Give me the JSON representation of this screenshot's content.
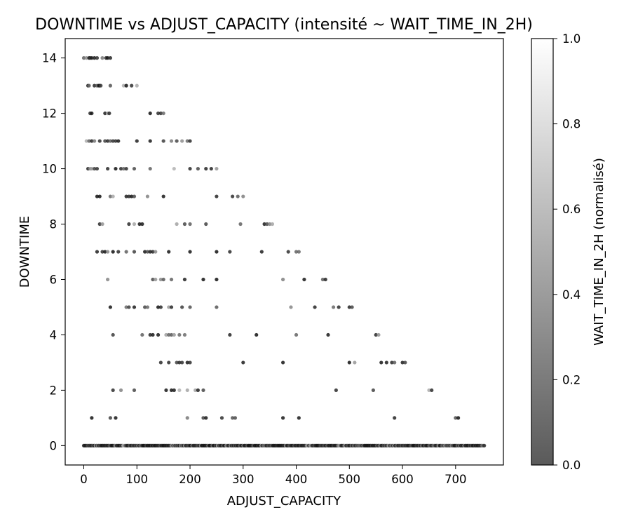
{
  "chart_data": {
    "type": "scatter",
    "title": "DOWNTIME vs ADJUST_CAPACITY (intensité ~ WAIT_TIME_IN_2H)",
    "xlabel": "ADJUST_CAPACITY",
    "ylabel": "DOWNTIME",
    "xlim": [
      -35,
      790
    ],
    "ylim": [
      -0.7,
      14.7
    ],
    "xticks": [
      0,
      100,
      200,
      300,
      400,
      500,
      600,
      700
    ],
    "yticks": [
      0,
      2,
      4,
      6,
      8,
      10,
      12,
      14
    ],
    "grid": false,
    "colorbar": {
      "label": "WAIT_TIME_IN_2H (normalisé)",
      "range": [
        0,
        1
      ],
      "ticks": [
        "0.0",
        "0.2",
        "0.4",
        "0.6",
        "0.8",
        "1.0"
      ],
      "color_low": "#5a5a5a",
      "color_high": "#ffffff"
    },
    "points": [
      {
        "y": 14,
        "x": [
          0,
          5,
          10,
          12,
          15,
          20,
          25,
          35,
          42,
          45,
          50
        ]
      },
      {
        "y": 13,
        "x": [
          8,
          10,
          20,
          25,
          28,
          30,
          32,
          50,
          75,
          80,
          90,
          100
        ]
      },
      {
        "y": 12,
        "x": [
          12,
          15,
          40,
          45,
          48,
          125,
          140,
          145,
          150
        ]
      },
      {
        "y": 11,
        "x": [
          5,
          10,
          15,
          20,
          30,
          40,
          45,
          50,
          55,
          60,
          65,
          100,
          125,
          150,
          165,
          175,
          185,
          195,
          200
        ]
      },
      {
        "y": 10,
        "x": [
          8,
          12,
          15,
          20,
          25,
          45,
          60,
          70,
          75,
          80,
          95,
          125,
          170,
          200,
          215,
          230,
          240,
          250
        ]
      },
      {
        "y": 9,
        "x": [
          25,
          30,
          50,
          55,
          80,
          85,
          90,
          95,
          120,
          150,
          250,
          280,
          290,
          300
        ]
      },
      {
        "y": 8,
        "x": [
          30,
          35,
          85,
          95,
          105,
          110,
          175,
          190,
          200,
          230,
          295,
          340,
          345,
          350,
          355
        ]
      },
      {
        "y": 7,
        "x": [
          25,
          35,
          40,
          45,
          55,
          65,
          80,
          95,
          115,
          120,
          125,
          130,
          135,
          160,
          200,
          250,
          275,
          335,
          385,
          400,
          405
        ]
      },
      {
        "y": 6,
        "x": [
          45,
          130,
          135,
          145,
          150,
          165,
          190,
          225,
          250,
          375,
          415,
          450,
          455
        ]
      },
      {
        "y": 5,
        "x": [
          50,
          80,
          85,
          95,
          115,
          120,
          140,
          145,
          160,
          165,
          185,
          200,
          250,
          390,
          435,
          470,
          480,
          500,
          505
        ]
      },
      {
        "y": 4,
        "x": [
          55,
          110,
          125,
          130,
          140,
          155,
          160,
          165,
          170,
          180,
          190,
          275,
          325,
          400,
          460,
          550,
          555
        ]
      },
      {
        "y": 3,
        "x": [
          145,
          160,
          175,
          180,
          185,
          195,
          200,
          300,
          375,
          500,
          510,
          560,
          570,
          580,
          585,
          600,
          605
        ]
      },
      {
        "y": 2,
        "x": [
          55,
          70,
          95,
          155,
          165,
          170,
          180,
          195,
          210,
          215,
          225,
          475,
          545,
          650,
          655
        ]
      },
      {
        "y": 1,
        "x": [
          15,
          50,
          60,
          195,
          225,
          230,
          260,
          280,
          285,
          375,
          405,
          585,
          700,
          705
        ]
      }
    ],
    "baseline": {
      "y": 0,
      "x_range": [
        0,
        755
      ]
    }
  }
}
